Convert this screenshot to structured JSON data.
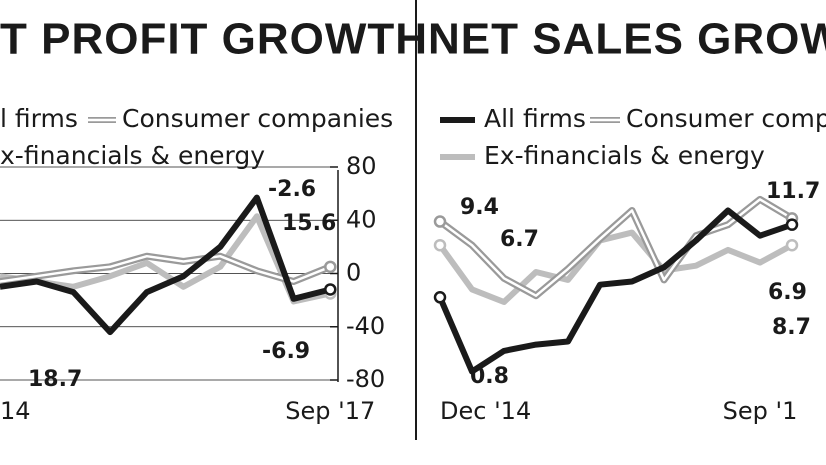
{
  "chart_data": [
    {
      "type": "line",
      "title": "T PROFIT GROWTH",
      "categories": [
        "14",
        null,
        null,
        null,
        null,
        null,
        null,
        null,
        null,
        "Sep '17"
      ],
      "series": [
        {
          "name": "l firms",
          "color": "#1a1a1a",
          "values": [
            -10,
            -6,
            -14,
            -44,
            -14,
            -2,
            20,
            57,
            -19,
            -12
          ]
        },
        {
          "name": "Consumer companies",
          "color": "#9a9a9a",
          "values": [
            -6,
            -2,
            2,
            5,
            13,
            9,
            13,
            2,
            -6,
            5
          ]
        },
        {
          "name": "x-financials & energy",
          "color": "#bdbdbd",
          "values": [
            -2,
            -6,
            -10,
            -2,
            8,
            -10,
            5,
            43,
            -21,
            -15
          ]
        }
      ],
      "ylim": [
        -80,
        80
      ],
      "yticks": [
        80,
        40,
        0,
        -40,
        -80
      ],
      "grid": true,
      "annotations": [
        "-2.6",
        "15.6",
        "-6.9",
        "18.7"
      ]
    },
    {
      "type": "line",
      "title": "NET SALES GROWT",
      "categories": [
        "Dec '14",
        null,
        null,
        null,
        null,
        null,
        null,
        null,
        null,
        null,
        "Sep '1",
        null
      ],
      "series": [
        {
          "name": "All firms",
          "color": "#1a1a1a",
          "values": [
            5.5,
            0.8,
            2.1,
            2.5,
            2.7,
            6.3,
            6.5,
            7.4,
            9.1,
            11.0,
            9.4,
            10.1
          ]
        },
        {
          "name": "Consumer compa",
          "color": "#9a9a9a",
          "values": [
            10.3,
            8.8,
            6.7,
            5.6,
            7.3,
            9.2,
            11.0,
            6.6,
            9.4,
            10.1,
            11.7,
            10.5
          ]
        },
        {
          "name": "Ex-financials & energy",
          "color": "#bdbdbd",
          "values": [
            8.8,
            6.0,
            5.2,
            7.1,
            6.6,
            9.1,
            9.6,
            7.2,
            7.5,
            8.5,
            7.7,
            8.8
          ]
        }
      ],
      "ylim": [
        -5,
        18
      ],
      "annotations": [
        "9.4",
        "6.7",
        "0.8",
        "11.7",
        "6.9",
        "8.7"
      ]
    }
  ]
}
